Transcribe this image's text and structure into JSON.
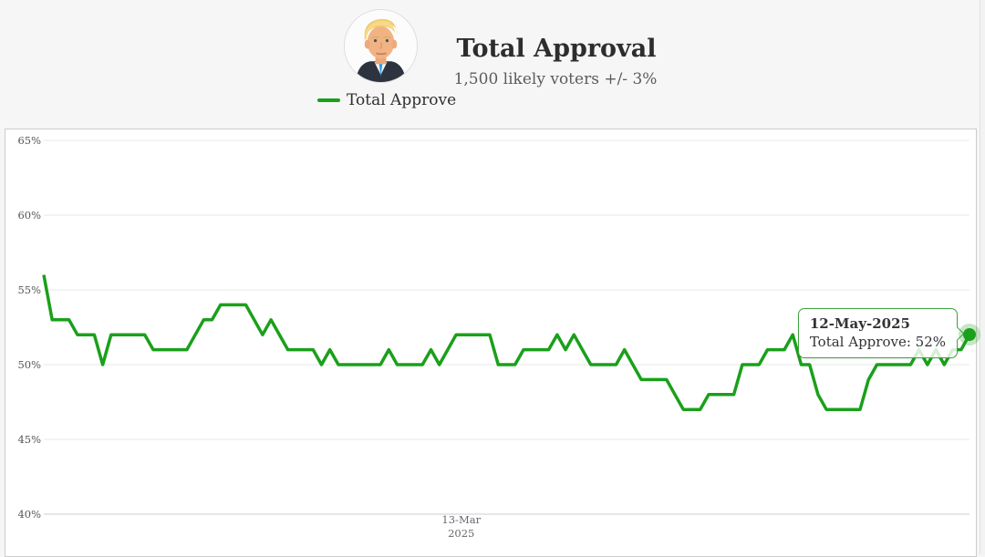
{
  "header": {
    "title": "Total Approval",
    "subtitle": "1,500 likely voters +/- 3%",
    "avatar_alt": "Donald Trump",
    "legend": {
      "label": "Total Approve",
      "color": "#1aa01a"
    }
  },
  "tooltip": {
    "date": "12-May-2025",
    "value_text": "Total Approve: 52%"
  },
  "colors": {
    "line": "#1aa01a",
    "tooltip_border": "#3fa33f",
    "grid": "#e7e7e7",
    "axis": "#ccccd6",
    "axis_text": "#55565a"
  },
  "chart_data": {
    "type": "line",
    "title": "Total Approval",
    "legend_position": "top-left",
    "grid": true,
    "y_axis": {
      "min": 40,
      "max": 65,
      "unit": "%",
      "ticks": [
        65,
        60,
        55,
        50,
        45,
        40
      ]
    },
    "x_axis": {
      "tick_label": "13-Mar",
      "tick_year": "2025",
      "tick_fraction": 0.451
    },
    "series": [
      {
        "name": "Total Approve",
        "color": "#1aa01a",
        "values": [
          56,
          53,
          53,
          53,
          52,
          52,
          52,
          50,
          52,
          52,
          52,
          52,
          52,
          51,
          51,
          51,
          51,
          51,
          52,
          53,
          53,
          54,
          54,
          54,
          54,
          53,
          52,
          53,
          52,
          51,
          51,
          51,
          51,
          50,
          51,
          50,
          50,
          50,
          50,
          50,
          50,
          51,
          50,
          50,
          50,
          50,
          51,
          50,
          51,
          52,
          52,
          52,
          52,
          52,
          50,
          50,
          50,
          51,
          51,
          51,
          51,
          52,
          51,
          52,
          51,
          50,
          50,
          50,
          50,
          51,
          50,
          49,
          49,
          49,
          49,
          48,
          47,
          47,
          47,
          48,
          48,
          48,
          48,
          50,
          50,
          50,
          51,
          51,
          51,
          52,
          50,
          50,
          48,
          47,
          47,
          47,
          47,
          47,
          49,
          50,
          50,
          50,
          50,
          50,
          51,
          50,
          51,
          50,
          51,
          51,
          52
        ]
      }
    ],
    "last_point": {
      "date": "12-May-2025",
      "series": "Total Approve",
      "value": 52
    }
  }
}
